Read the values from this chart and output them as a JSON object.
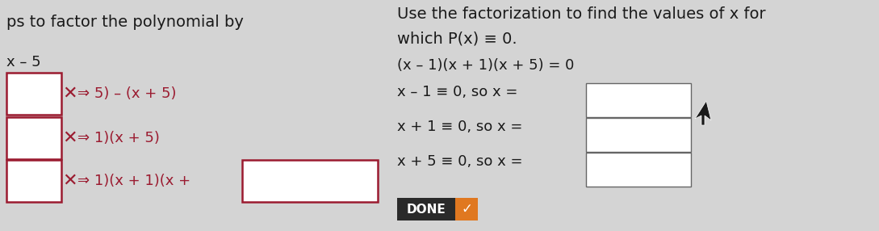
{
  "bg_color": "#d4d4d4",
  "text_color": "#1a1a1a",
  "dark_red": "#9b1b30",
  "left_title": "ps to factor the polynomial by",
  "left_sub": "x – 5",
  "row1_arrow": "⇒ 5) – (x + 5)",
  "row2_arrow": "⇒ 1)(x + 5)",
  "row3_arrow": "⇒ 1)(x + 1)(x +",
  "right_line0": "Use the factorization to find the values of x for",
  "right_line1": "which P(x) ≡ 0.",
  "right_line2": "(x – 1)(x + 1)(x + 5) = 0",
  "right_line3": "x – 1 ≡ 0, so x =",
  "right_line4": "x + 1 ≡ 0, so x =",
  "right_line5": "x + 5 ≡ 0, so x =",
  "done_text": "DONE",
  "box_red": "#9b1b30",
  "box_gray": "#888888",
  "done_bg": "#2a2a2a",
  "done_check_bg": "#e07820",
  "font_size": 13,
  "font_size_title": 14
}
